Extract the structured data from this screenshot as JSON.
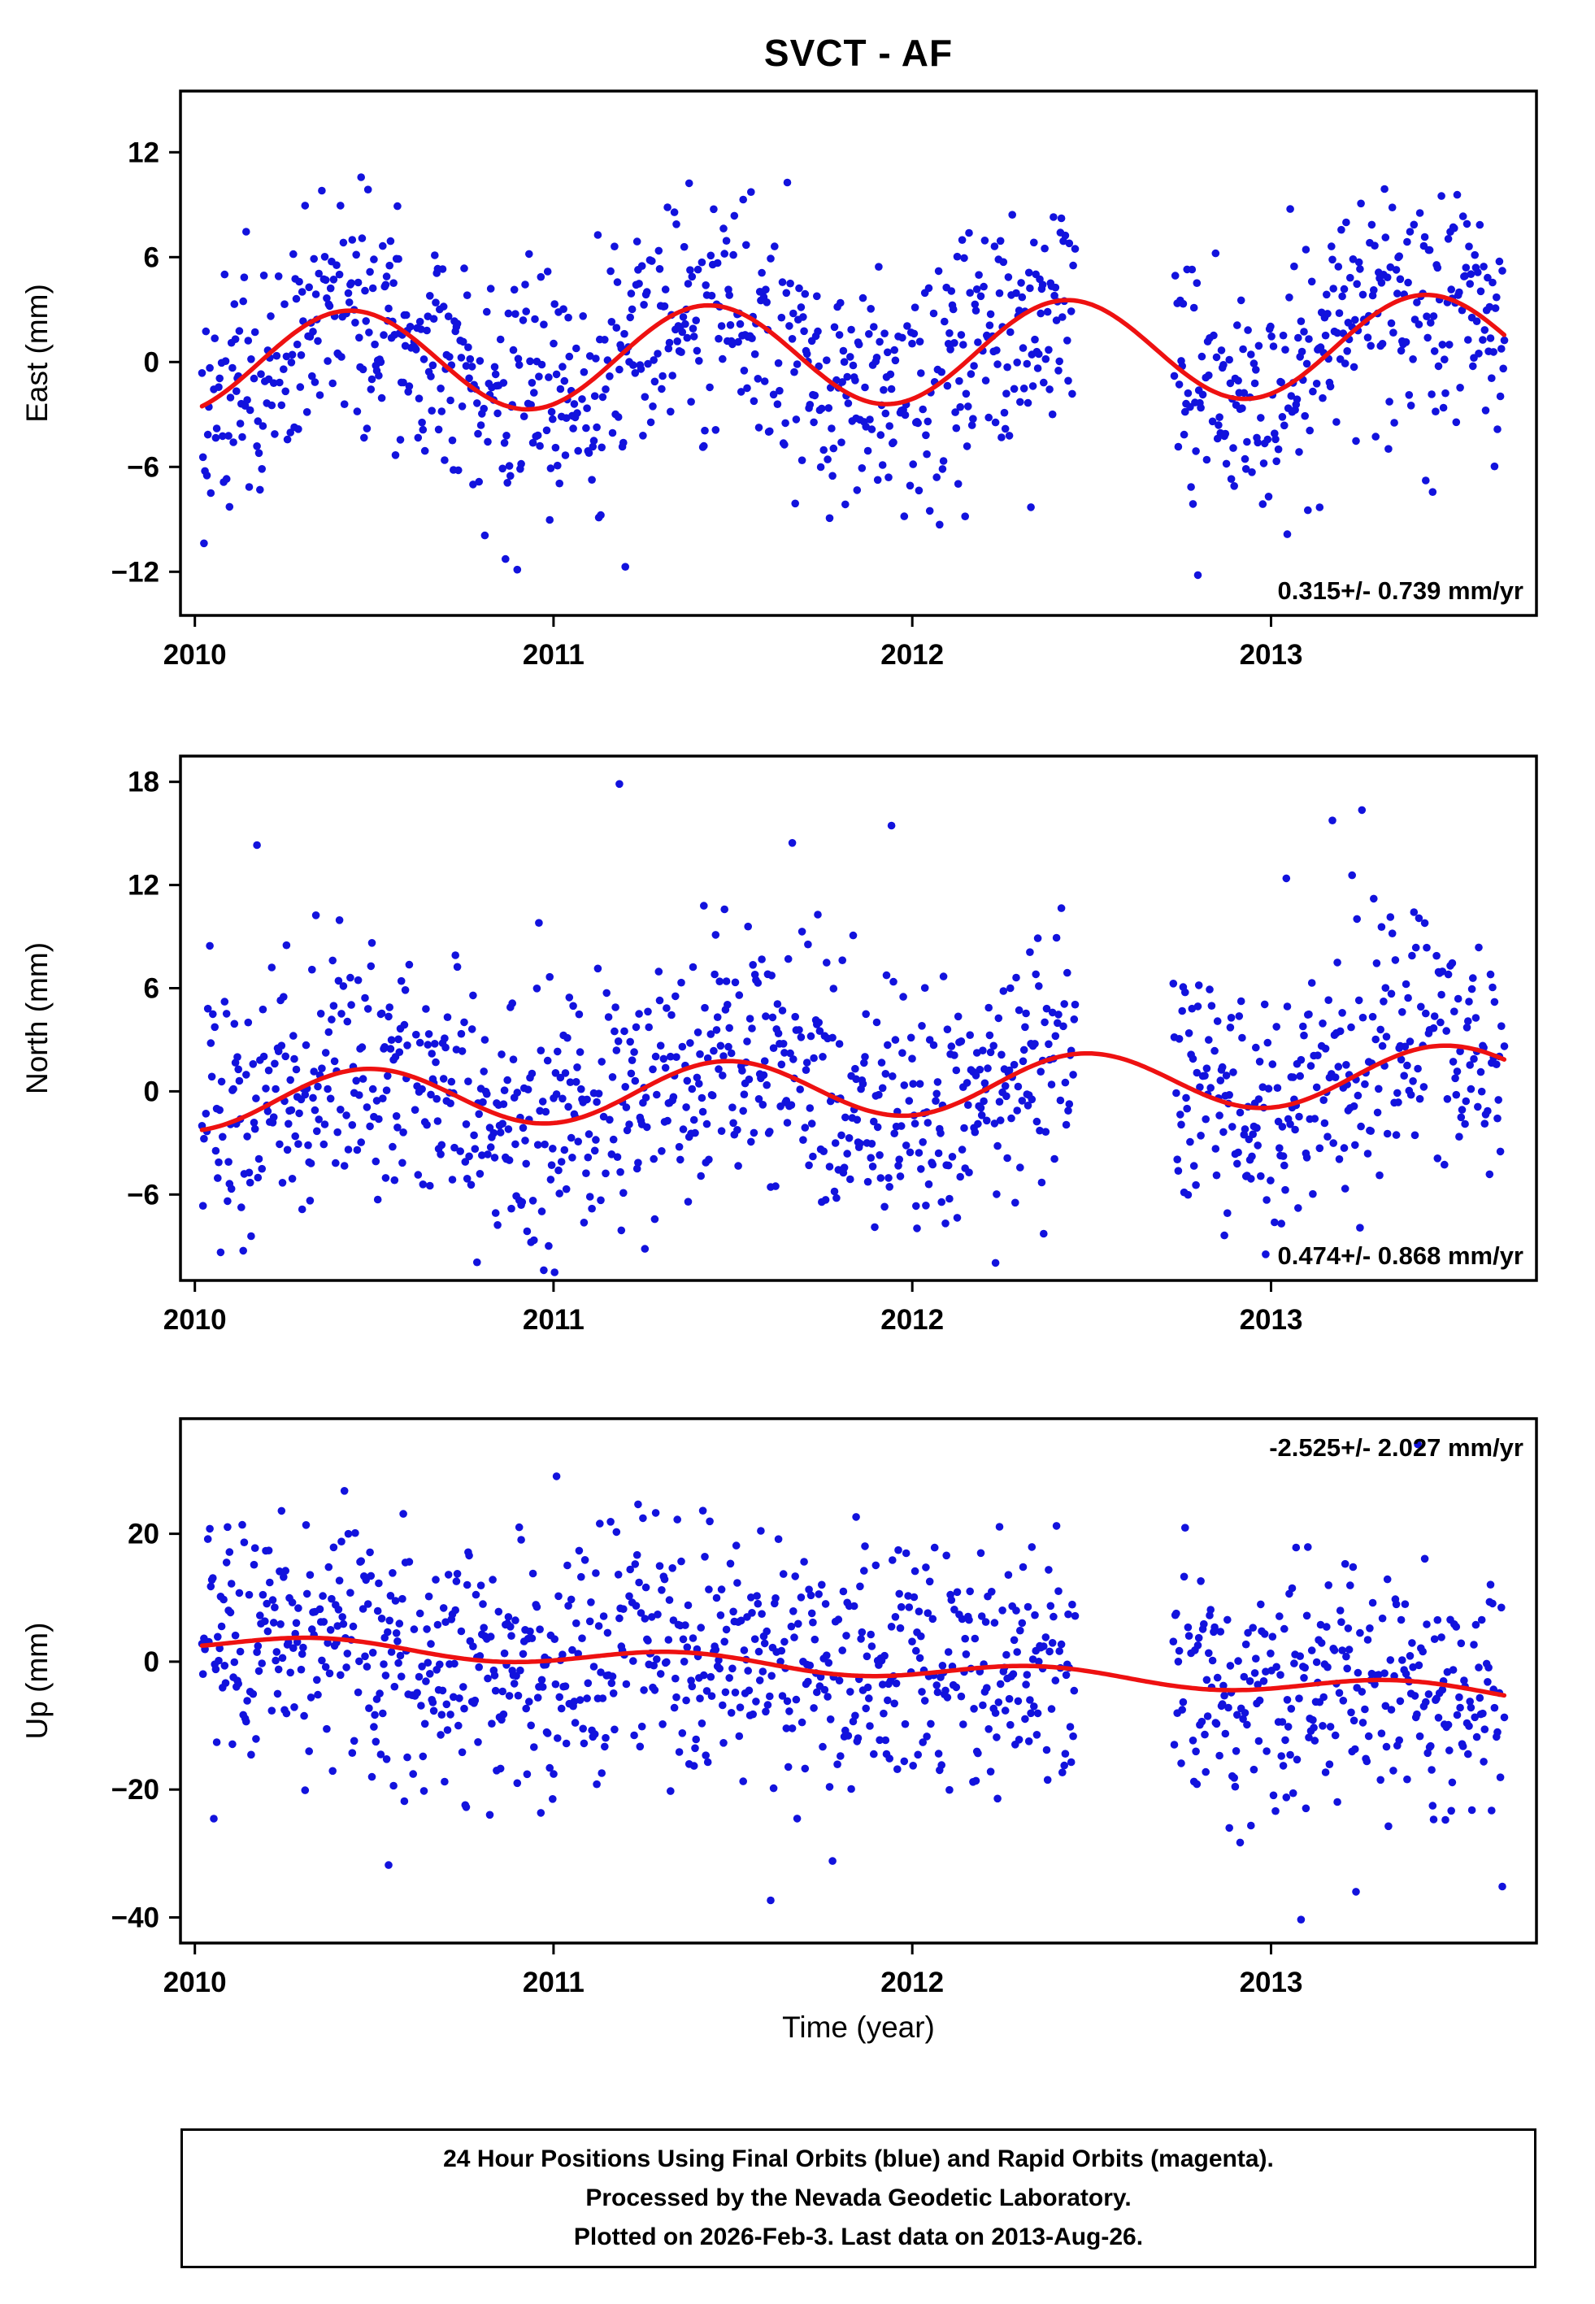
{
  "chart_data": {
    "type": "scatter",
    "title": "SVCT - AF",
    "xlabel": "Time (year)",
    "xlim": [
      2009.96,
      2013.74
    ],
    "xticks": [
      2010,
      2011,
      2012,
      2013
    ],
    "data_start": 2010.02,
    "data_end": 2013.653,
    "gaps": [
      [
        2012.455,
        2012.725
      ]
    ],
    "grid": "off",
    "legend_position": "none",
    "colors": {
      "points": "#1212dd",
      "curve": "#ee1111",
      "axis": "#000000"
    },
    "sampling": {
      "step_days": 1,
      "dropout": 0.12
    },
    "panels": [
      {
        "name": "east",
        "ylabel": "East (mm)",
        "yticks": [
          12,
          6,
          0,
          -6,
          -12
        ],
        "ylim": [
          -14.5,
          15.5
        ],
        "annotation": "0.315+/- 0.739 mm/yr",
        "annotation_corner": "bottom-right",
        "trend_mm_yr": 0.315,
        "trend_sigma_mm_yr": 0.739,
        "model": {
          "offset": 0.45,
          "trend": 0.3,
          "t_ref": 2011.8,
          "amp": 2.9,
          "phase": 0.18,
          "sigma": 3.3,
          "outlier_prob": 0.03,
          "outlier_mult": 2.6,
          "skew_prob": 0,
          "skew_amp": 0
        },
        "seed": 101
      },
      {
        "name": "north",
        "ylabel": "North (mm)",
        "yticks": [
          18,
          12,
          6,
          0,
          -6
        ],
        "ylim": [
          -11,
          19.5
        ],
        "annotation": "0.474+/- 0.868 mm/yr",
        "annotation_corner": "bottom-right",
        "trend_mm_yr": 0.474,
        "trend_sigma_mm_yr": 0.868,
        "model": {
          "offset": 0.2,
          "trend": 0.45,
          "t_ref": 2011.8,
          "amp": 1.7,
          "phase": 0.23,
          "sigma": 3.4,
          "outlier_prob": 0.03,
          "outlier_mult": 2.4,
          "skew_prob": 0.07,
          "skew_amp": 8
        },
        "seed": 202
      },
      {
        "name": "up",
        "ylabel": "Up (mm)",
        "yticks": [
          20,
          0,
          -20,
          -40
        ],
        "ylim": [
          -44,
          38
        ],
        "annotation": "-2.525+/- 2.027 mm/yr",
        "annotation_corner": "top-right",
        "trend_mm_yr": -2.525,
        "trend_sigma_mm_yr": 2.027,
        "model": {
          "offset": -0.8,
          "trend": -2.2,
          "t_ref": 2011.8,
          "amp": 1.3,
          "phase": 0.1,
          "sigma": 9.0,
          "outlier_prob": 0.04,
          "outlier_mult": 2.2,
          "skew_prob": 0.03,
          "skew_amp": -16
        },
        "seed": 303
      }
    ]
  },
  "caption": {
    "lines": [
      "24 Hour Positions Using Final Orbits (blue) and Rapid Orbits (magenta).",
      "Processed by the Nevada Geodetic Laboratory.",
      "Plotted on 2026-Feb-3. Last data on 2013-Aug-26."
    ]
  }
}
